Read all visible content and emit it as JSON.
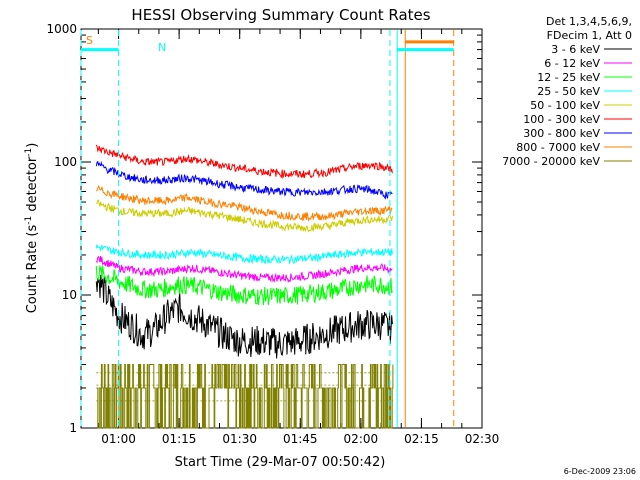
{
  "chart_data": {
    "type": "line",
    "title": "HESSI Observing Summary Count Rates",
    "xlabel": "Start Time (29-Mar-07 00:50:42)",
    "ylabel_main": "Count Rate (s",
    "ylabel_sup1": "-1",
    "ylabel_mid": " detector",
    "ylabel_sup2": "-1",
    "ylabel_end": ")",
    "y_scale": "log",
    "ylim": [
      1,
      1000
    ],
    "xlim_minutes": [
      50.7,
      150
    ],
    "x_ticks": [
      {
        "label": "01:00",
        "minutes": 60
      },
      {
        "label": "01:15",
        "minutes": 75
      },
      {
        "label": "01:30",
        "minutes": 90
      },
      {
        "label": "01:45",
        "minutes": 105
      },
      {
        "label": "02:00",
        "minutes": 120
      },
      {
        "label": "02:15",
        "minutes": 135
      },
      {
        "label": "02:30",
        "minutes": 150
      }
    ],
    "y_ticks": [
      {
        "label": "1",
        "value": 1
      },
      {
        "label": "10",
        "value": 10
      },
      {
        "label": "100",
        "value": 100
      },
      {
        "label": "1000",
        "value": 1000
      }
    ],
    "legend_header": [
      "Det 1,3,4,5,6,9,",
      "FDecim 1, Att 0"
    ],
    "legend_position": "right",
    "series": [
      {
        "name": "3 - 6 keV",
        "color": "#000000",
        "x": [
          54.5,
          57,
          60,
          63,
          66,
          69,
          72,
          75,
          78,
          82,
          86,
          90,
          95,
          100,
          105,
          110,
          115,
          120,
          125,
          128
        ],
        "y": [
          14,
          10,
          7,
          6,
          5,
          5.5,
          7,
          8,
          7,
          6,
          5,
          4.5,
          4.5,
          4.3,
          4.5,
          5,
          5.5,
          6,
          6,
          5.5
        ]
      },
      {
        "name": "6 - 12 keV",
        "color": "#ff00ff",
        "x": [
          54.5,
          60,
          66,
          72,
          78,
          84,
          90,
          96,
          102,
          108,
          114,
          120,
          125,
          128
        ],
        "y": [
          19,
          16,
          15,
          15,
          16,
          15,
          14,
          13.5,
          13.5,
          14,
          15,
          16,
          16,
          15.5
        ]
      },
      {
        "name": "12 - 25 keV",
        "color": "#00ff00",
        "x": [
          54.5,
          58,
          62,
          66,
          70,
          75,
          80,
          85,
          90,
          95,
          100,
          105,
          110,
          115,
          120,
          125,
          128
        ],
        "y": [
          15,
          13.5,
          12,
          11,
          11,
          12,
          11.5,
          10.5,
          10,
          9.8,
          9.8,
          10,
          10.5,
          11,
          12,
          12,
          11.5
        ]
      },
      {
        "name": "25 - 50 keV",
        "color": "#00ffff",
        "x": [
          54.5,
          60,
          66,
          72,
          78,
          84,
          90,
          96,
          102,
          108,
          114,
          120,
          125,
          128
        ],
        "y": [
          23,
          21,
          20,
          20,
          21,
          20,
          19,
          18.5,
          18.5,
          19,
          20,
          21,
          21,
          21
        ]
      },
      {
        "name": "50 - 100 keV",
        "color": "#cccc00",
        "x": [
          54.5,
          58,
          62,
          66,
          72,
          77,
          82,
          88,
          94,
          100,
          106,
          112,
          118,
          122,
          125,
          128
        ],
        "y": [
          49,
          45,
          42,
          41,
          41,
          43,
          41,
          38,
          35,
          33,
          32,
          33,
          36,
          37,
          37,
          38
        ]
      },
      {
        "name": "100 - 300 keV",
        "color": "#ff0000",
        "x": [
          54.5,
          58,
          62,
          66,
          72,
          77,
          82,
          88,
          94,
          100,
          106,
          112,
          118,
          122,
          125,
          128
        ],
        "y": [
          128,
          117,
          108,
          100,
          100,
          107,
          99,
          92,
          86,
          82,
          81,
          84,
          92,
          95,
          93,
          87
        ]
      },
      {
        "name": "300 - 800 keV",
        "color": "#0000ff",
        "x": [
          54.5,
          58,
          62,
          66,
          72,
          77,
          82,
          88,
          94,
          100,
          106,
          112,
          118,
          122,
          125,
          128
        ],
        "y": [
          97,
          86,
          78,
          73,
          73,
          76,
          71,
          66,
          62,
          60,
          59,
          60,
          63,
          62,
          58,
          55
        ]
      },
      {
        "name": "800 - 7000 keV",
        "color": "#ff8000",
        "x": [
          54.5,
          58,
          62,
          66,
          72,
          77,
          82,
          88,
          94,
          100,
          106,
          112,
          118,
          122,
          125,
          128
        ],
        "y": [
          63,
          58,
          54,
          51,
          51,
          54,
          50,
          47,
          43,
          40,
          39,
          39,
          42,
          43,
          43,
          44
        ]
      },
      {
        "name": "7000 - 20000 keV",
        "color": "#808000",
        "x": [],
        "y": []
      }
    ],
    "legend_entries": [
      {
        "label": "3 - 6 keV",
        "color": "#000000"
      },
      {
        "label": "6 - 12 keV",
        "color": "#ff00ff"
      },
      {
        "label": "12 - 25 keV",
        "color": "#00ff00"
      },
      {
        "label": "25 - 50 keV",
        "color": "#00ffff"
      },
      {
        "label": "50 - 100 keV",
        "color": "#cccc00"
      },
      {
        "label": "100 - 300 keV",
        "color": "#ff0000"
      },
      {
        "label": "300 - 800 keV",
        "color": "#0000ff"
      },
      {
        "label": "800 - 7000 keV",
        "color": "#ff8000"
      },
      {
        "label": "7000 - 20000 keV",
        "color": "#808000"
      }
    ],
    "flags": [
      {
        "label": "S",
        "color": "#ff8000"
      },
      {
        "label": "N",
        "color": "#00ffff"
      }
    ],
    "flag_bars": [
      {
        "color": "#00ffff",
        "x_start": 50.7,
        "x_end": 60,
        "value": 700
      },
      {
        "color": "#00ffff",
        "x_start": 129,
        "x_end": 143,
        "value": 700
      },
      {
        "color": "#ff8000",
        "x_start": 131,
        "x_end": 143,
        "value": 800
      }
    ],
    "vertical_markers": [
      {
        "color": "#00ffff",
        "style": "dashed",
        "minutes": 50.7
      },
      {
        "color": "#00ffff",
        "style": "dashed",
        "minutes": 60
      },
      {
        "color": "#00ffff",
        "style": "dashed",
        "minutes": 127.2
      },
      {
        "color": "#00ffff",
        "style": "solid",
        "minutes": 129
      },
      {
        "color": "#ff8000",
        "style": "solid",
        "minutes": 131
      },
      {
        "color": "#ff8000",
        "style": "dashed",
        "minutes": 143
      }
    ],
    "grid": false
  },
  "footer_timestamp": "6-Dec-2009 23:06"
}
